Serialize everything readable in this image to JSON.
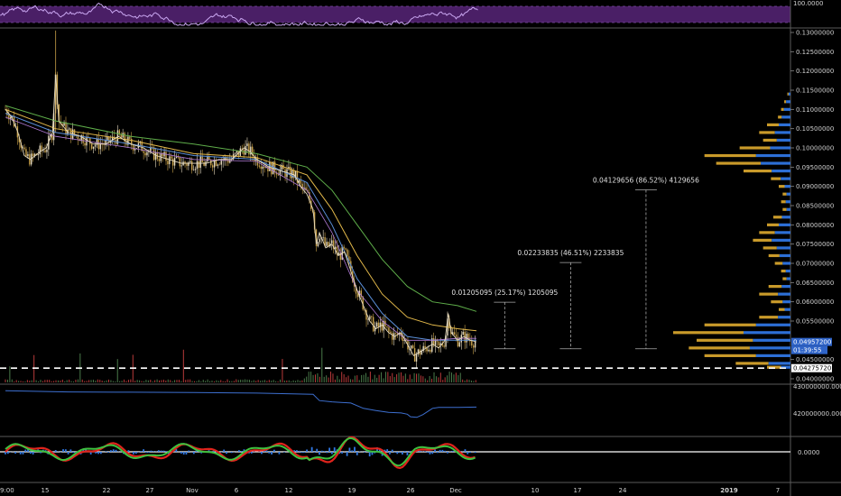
{
  "colors": {
    "background": "#000000",
    "axis_text": "#d0d0d0",
    "divider": "#5a5a5a",
    "rsi_band": "#4a1f66",
    "rsi_line": "#c9a6f0",
    "price_up": "#e8dcc0",
    "price_down": "#c9a24a",
    "ma_green": "#5fae4a",
    "ma_blue": "#5b8fd8",
    "ma_yellow": "#e2b84a",
    "ma_purple": "#b07ad6",
    "volume": "#b83a3a",
    "obv_line": "#3d6fcf",
    "vp_blue": "#2d6fd6",
    "vp_gold": "#c99a2a",
    "macd_red": "#e0241c",
    "macd_green": "#3fc13f",
    "macd_blue": "#2f79e6",
    "last_price_box": "#2f64c8",
    "dashed_line": "#ffffff"
  },
  "chart_data": [
    {
      "type": "line",
      "panel": "rsi",
      "y_labels": [
        "100.0000"
      ],
      "ylim": [
        0,
        100
      ]
    },
    {
      "type": "candlestick",
      "panel": "price",
      "x_tick_labels": [
        "9:00",
        "15",
        "22",
        "27",
        "Nov",
        "6",
        "12",
        "19",
        "26",
        "Dec",
        "10",
        "17",
        "24",
        "2019",
        "7"
      ],
      "y_tick_labels": [
        "0.13000000",
        "0.12500000",
        "0.12000000",
        "0.11500000",
        "0.11000000",
        "0.10500000",
        "0.10000000",
        "0.09500000",
        "0.09000000",
        "0.08500000",
        "0.08000000",
        "0.07500000",
        "0.07000000",
        "0.06500000",
        "0.06000000",
        "0.05500000",
        "0.04500000",
        "0.04000000"
      ],
      "ylim": [
        0.04,
        0.13
      ],
      "last_price_label": "0.04957200",
      "countdown_label": "01:39:55",
      "marked_level_label": "0.04275720",
      "marked_level_value": 0.0427572,
      "price_path": [
        [
          0,
          0.11
        ],
        [
          2,
          0.108
        ],
        [
          4,
          0.104
        ],
        [
          6,
          0.098
        ],
        [
          8,
          0.097
        ],
        [
          11,
          0.099
        ],
        [
          13,
          0.1
        ],
        [
          15,
          0.104
        ],
        [
          16,
          0.119
        ],
        [
          17,
          0.107
        ],
        [
          20,
          0.104
        ],
        [
          24,
          0.103
        ],
        [
          28,
          0.101
        ],
        [
          32,
          0.101
        ],
        [
          36,
          0.103
        ],
        [
          40,
          0.101
        ],
        [
          44,
          0.1
        ],
        [
          48,
          0.098
        ],
        [
          52,
          0.097
        ],
        [
          56,
          0.096
        ],
        [
          60,
          0.096
        ],
        [
          64,
          0.096
        ],
        [
          68,
          0.097
        ],
        [
          72,
          0.097
        ],
        [
          76,
          0.1
        ],
        [
          78,
          0.099
        ],
        [
          80,
          0.097
        ],
        [
          84,
          0.095
        ],
        [
          88,
          0.094
        ],
        [
          92,
          0.093
        ],
        [
          94,
          0.09
        ],
        [
          96,
          0.088
        ],
        [
          98,
          0.084
        ],
        [
          99,
          0.075
        ],
        [
          100,
          0.078
        ],
        [
          102,
          0.074
        ],
        [
          104,
          0.075
        ],
        [
          106,
          0.072
        ],
        [
          108,
          0.073
        ],
        [
          110,
          0.068
        ],
        [
          112,
          0.063
        ],
        [
          114,
          0.059
        ],
        [
          116,
          0.055
        ],
        [
          118,
          0.053
        ],
        [
          120,
          0.054
        ],
        [
          122,
          0.052
        ],
        [
          124,
          0.051
        ],
        [
          126,
          0.052
        ],
        [
          128,
          0.049
        ],
        [
          130,
          0.046
        ],
        [
          132,
          0.047
        ],
        [
          134,
          0.048
        ],
        [
          136,
          0.049
        ],
        [
          138,
          0.048
        ],
        [
          140,
          0.05
        ],
        [
          141,
          0.057
        ],
        [
          142,
          0.052
        ],
        [
          144,
          0.05
        ],
        [
          146,
          0.051
        ],
        [
          148,
          0.05
        ],
        [
          150,
          0.0496
        ]
      ],
      "ma_green": [
        [
          0,
          0.111
        ],
        [
          16,
          0.107
        ],
        [
          40,
          0.103
        ],
        [
          60,
          0.101
        ],
        [
          80,
          0.0985
        ],
        [
          96,
          0.095
        ],
        [
          104,
          0.089
        ],
        [
          112,
          0.08
        ],
        [
          120,
          0.071
        ],
        [
          128,
          0.064
        ],
        [
          136,
          0.06
        ],
        [
          144,
          0.059
        ],
        [
          150,
          0.0575
        ]
      ],
      "ma_blue": [
        [
          0,
          0.109
        ],
        [
          16,
          0.104
        ],
        [
          40,
          0.101
        ],
        [
          60,
          0.098
        ],
        [
          80,
          0.097
        ],
        [
          96,
          0.091
        ],
        [
          104,
          0.08
        ],
        [
          112,
          0.066
        ],
        [
          120,
          0.057
        ],
        [
          128,
          0.051
        ],
        [
          136,
          0.05
        ],
        [
          144,
          0.05
        ],
        [
          150,
          0.05
        ]
      ],
      "ma_yellow": [
        [
          0,
          0.11
        ],
        [
          16,
          0.105
        ],
        [
          40,
          0.102
        ],
        [
          60,
          0.0985
        ],
        [
          80,
          0.0975
        ],
        [
          96,
          0.093
        ],
        [
          104,
          0.084
        ],
        [
          112,
          0.072
        ],
        [
          120,
          0.062
        ],
        [
          128,
          0.056
        ],
        [
          136,
          0.054
        ],
        [
          144,
          0.053
        ],
        [
          150,
          0.0525
        ]
      ],
      "ma_purple": [
        [
          0,
          0.108
        ],
        [
          16,
          0.103
        ],
        [
          40,
          0.1
        ],
        [
          60,
          0.097
        ],
        [
          80,
          0.0965
        ],
        [
          96,
          0.089
        ],
        [
          104,
          0.078
        ],
        [
          112,
          0.063
        ],
        [
          120,
          0.055
        ],
        [
          128,
          0.05
        ],
        [
          136,
          0.05
        ],
        [
          144,
          0.0505
        ],
        [
          150,
          0.0505
        ]
      ],
      "projections": [
        {
          "label": "0.01205095 (25.17%) 1205095",
          "x": 159,
          "from": 0.0478,
          "to": 0.0599
        },
        {
          "label": "0.02233835 (46.51%) 2233835",
          "x": 180,
          "from": 0.0478,
          "to": 0.0702
        },
        {
          "label": "0.04129656 (86.52%) 4129656",
          "x": 204,
          "from": 0.0478,
          "to": 0.0891
        }
      ],
      "volume_profile": [
        {
          "price": 0.114,
          "vol": 4,
          "gold": 0.4
        },
        {
          "price": 0.112,
          "vol": 8,
          "gold": 0.3
        },
        {
          "price": 0.11,
          "vol": 12,
          "gold": 0.3
        },
        {
          "price": 0.108,
          "vol": 16,
          "gold": 0.3
        },
        {
          "price": 0.106,
          "vol": 30,
          "gold": 0.5
        },
        {
          "price": 0.104,
          "vol": 40,
          "gold": 0.5
        },
        {
          "price": 0.102,
          "vol": 35,
          "gold": 0.5
        },
        {
          "price": 0.1,
          "vol": 65,
          "gold": 0.6
        },
        {
          "price": 0.098,
          "vol": 110,
          "gold": 0.6
        },
        {
          "price": 0.096,
          "vol": 95,
          "gold": 0.6
        },
        {
          "price": 0.094,
          "vol": 60,
          "gold": 0.6
        },
        {
          "price": 0.092,
          "vol": 25,
          "gold": 0.5
        },
        {
          "price": 0.09,
          "vol": 15,
          "gold": 0.5
        },
        {
          "price": 0.088,
          "vol": 10,
          "gold": 0.5
        },
        {
          "price": 0.086,
          "vol": 12,
          "gold": 0.5
        },
        {
          "price": 0.084,
          "vol": 10,
          "gold": 0.5
        },
        {
          "price": 0.082,
          "vol": 22,
          "gold": 0.5
        },
        {
          "price": 0.08,
          "vol": 30,
          "gold": 0.5
        },
        {
          "price": 0.078,
          "vol": 40,
          "gold": 0.5
        },
        {
          "price": 0.076,
          "vol": 48,
          "gold": 0.5
        },
        {
          "price": 0.074,
          "vol": 35,
          "gold": 0.5
        },
        {
          "price": 0.072,
          "vol": 28,
          "gold": 0.5
        },
        {
          "price": 0.07,
          "vol": 20,
          "gold": 0.5
        },
        {
          "price": 0.068,
          "vol": 12,
          "gold": 0.5
        },
        {
          "price": 0.066,
          "vol": 10,
          "gold": 0.5
        },
        {
          "price": 0.064,
          "vol": 28,
          "gold": 0.6
        },
        {
          "price": 0.062,
          "vol": 40,
          "gold": 0.6
        },
        {
          "price": 0.06,
          "vol": 25,
          "gold": 0.6
        },
        {
          "price": 0.058,
          "vol": 15,
          "gold": 0.5
        },
        {
          "price": 0.056,
          "vol": 40,
          "gold": 0.6
        },
        {
          "price": 0.054,
          "vol": 110,
          "gold": 0.6
        },
        {
          "price": 0.052,
          "vol": 150,
          "gold": 0.6
        },
        {
          "price": 0.05,
          "vol": 120,
          "gold": 0.6
        },
        {
          "price": 0.048,
          "vol": 130,
          "gold": 0.6
        },
        {
          "price": 0.046,
          "vol": 110,
          "gold": 0.6
        },
        {
          "price": 0.044,
          "vol": 70,
          "gold": 0.6
        },
        {
          "price": 0.043,
          "vol": 30,
          "gold": 0.6
        }
      ]
    },
    {
      "type": "line",
      "panel": "obv",
      "y_tick_labels": [
        "430000000.0000",
        "420000000.0000"
      ],
      "ylim": [
        416000000,
        432000000
      ],
      "path": [
        [
          0,
          430200000
        ],
        [
          20,
          429800000
        ],
        [
          40,
          429700000
        ],
        [
          60,
          429600000
        ],
        [
          80,
          429400000
        ],
        [
          98,
          429000000
        ],
        [
          100,
          427000000
        ],
        [
          104,
          426600000
        ],
        [
          110,
          426200000
        ],
        [
          114,
          424500000
        ],
        [
          118,
          423800000
        ],
        [
          122,
          423200000
        ],
        [
          126,
          423000000
        ],
        [
          128,
          422600000
        ],
        [
          129,
          421800000
        ],
        [
          131,
          421600000
        ],
        [
          133,
          422500000
        ],
        [
          136,
          424500000
        ],
        [
          138,
          424800000
        ],
        [
          144,
          424800000
        ],
        [
          150,
          424900000
        ]
      ]
    },
    {
      "type": "bar",
      "panel": "macd",
      "y_tick_labels": [
        "0.0000"
      ],
      "ylim": [
        -1,
        1
      ]
    }
  ]
}
